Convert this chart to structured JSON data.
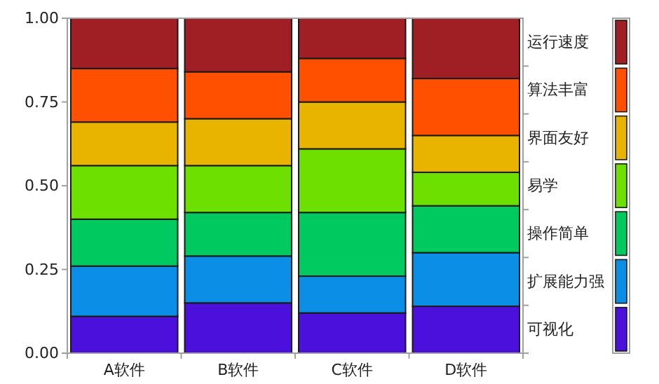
{
  "chart_data": {
    "type": "bar",
    "stacked": true,
    "categories": [
      "A软件",
      "B软件",
      "C软件",
      "D软件"
    ],
    "series": [
      {
        "name": "可视化",
        "color": "#4b10dc",
        "values": [
          0.11,
          0.15,
          0.12,
          0.14
        ]
      },
      {
        "name": "扩展能力强",
        "color": "#0a8ee6",
        "values": [
          0.15,
          0.14,
          0.11,
          0.16
        ]
      },
      {
        "name": "操作简单",
        "color": "#00c95f",
        "values": [
          0.14,
          0.13,
          0.19,
          0.14
        ]
      },
      {
        "name": "易学",
        "color": "#6ee000",
        "values": [
          0.16,
          0.14,
          0.19,
          0.1
        ]
      },
      {
        "name": "界面友好",
        "color": "#e8b400",
        "values": [
          0.13,
          0.14,
          0.14,
          0.11
        ]
      },
      {
        "name": "算法丰富",
        "color": "#ff5000",
        "values": [
          0.16,
          0.14,
          0.13,
          0.17
        ]
      },
      {
        "name": "运行速度",
        "color": "#a01f25",
        "values": [
          0.15,
          0.16,
          0.12,
          0.18
        ]
      }
    ],
    "ylim": [
      0,
      1
    ],
    "yticks": [
      {
        "value": 0,
        "label": "0.00"
      },
      {
        "value": 0.25,
        "label": "0.25"
      },
      {
        "value": 0.5,
        "label": "0.50"
      },
      {
        "value": 0.75,
        "label": "0.75"
      },
      {
        "value": 1,
        "label": "1.00"
      }
    ],
    "legend": "right"
  }
}
